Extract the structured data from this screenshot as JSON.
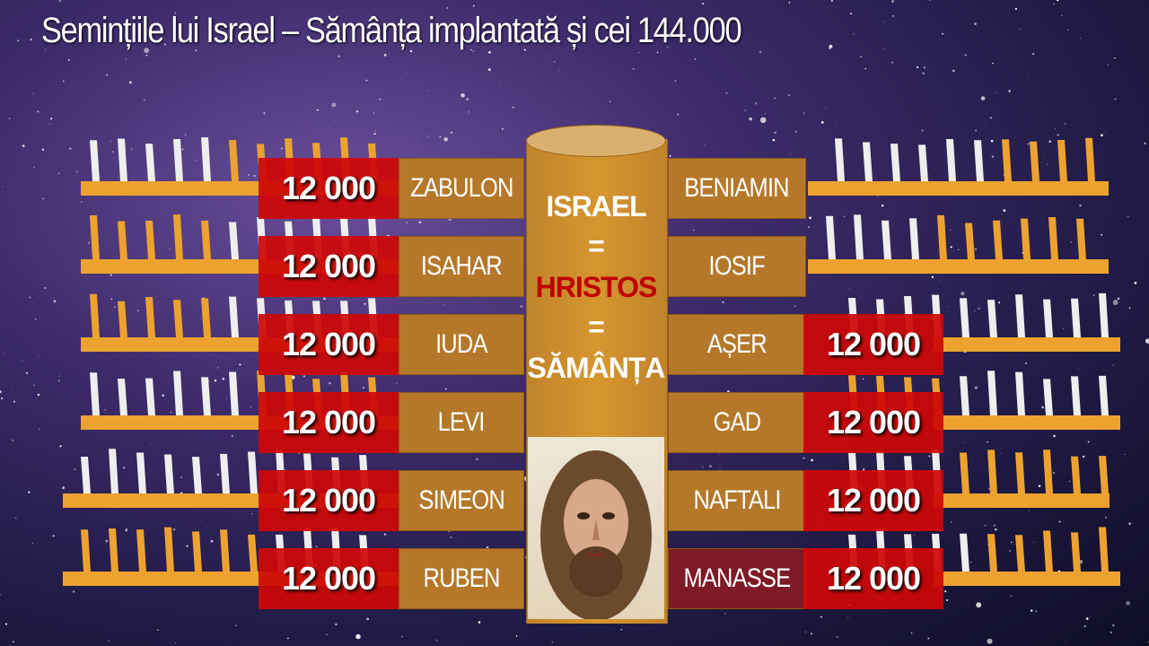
{
  "title": "Semințiile lui Israel – Sămânța implantată și cei 144.000",
  "center": {
    "line1": "ISRAEL",
    "eq1": "=",
    "line2": "HRISTOS",
    "eq2": "=",
    "line3": "SĂMÂNȚA",
    "portrait": "portrait of Jesus"
  },
  "left_tribes": [
    {
      "count": "12 000",
      "name": "ZABULON"
    },
    {
      "count": "12 000",
      "name": "ISAHAR"
    },
    {
      "count": "12 000",
      "name": "IUDA"
    },
    {
      "count": "12 000",
      "name": "LEVI"
    },
    {
      "count": "12 000",
      "name": "SIMEON"
    },
    {
      "count": "12 000",
      "name": "RUBEN"
    }
  ],
  "right_tribes": [
    {
      "name": "BENIAMIN"
    },
    {
      "name": "IOSIF"
    },
    {
      "name": "AȘER",
      "count": "12 000"
    },
    {
      "name": "GAD",
      "count": "12 000"
    },
    {
      "name": "NAFTALI",
      "count": "12 000"
    },
    {
      "name": "MANASSE",
      "count": "12 000"
    }
  ],
  "colors": {
    "count_box": "#cd0808",
    "name_box": "#b5782a",
    "manasse_box": "#7e1a26",
    "comb_orange": "#eda230",
    "tooth_white": "#eeeeee",
    "hristos": "#c00000"
  }
}
